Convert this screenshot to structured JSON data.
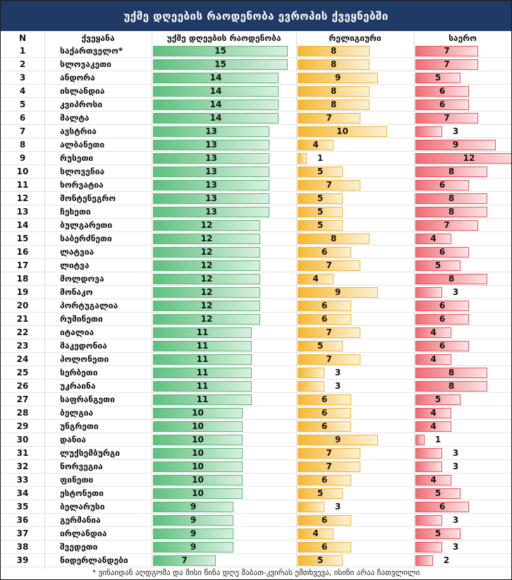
{
  "title": "უქმე დღეების რაოდენობა ევროპის ქვეყნებში",
  "footnote": "* ვინაიდან აღდგომა და მისი წინა დღე შაბათ-კვირას ემთხვევა, ისინი არაა ჩათვლილი",
  "colors": {
    "header_bg": "#1f3a64",
    "total": "#5ec07e",
    "religious": "#f5b731",
    "secular": "#f06c74"
  },
  "chart_data": {
    "type": "table",
    "columns": [
      "N",
      "ქვეყანა",
      "უქმე დღეების რაოდენობა",
      "რელიგიური",
      "საერო"
    ],
    "scale_max": 15,
    "rows": [
      {
        "n": "1",
        "country": "საქართველო*",
        "total": 15,
        "religious": 8,
        "secular": 7
      },
      {
        "n": "2",
        "country": "სლოვაკეთი",
        "total": 15,
        "religious": 8,
        "secular": 7
      },
      {
        "n": "3",
        "country": "ანდორა",
        "total": 14,
        "religious": 9,
        "secular": 5
      },
      {
        "n": "4",
        "country": "ისლანდია",
        "total": 14,
        "religious": 8,
        "secular": 6
      },
      {
        "n": "5",
        "country": "კვიპროსი",
        "total": 14,
        "religious": 8,
        "secular": 6
      },
      {
        "n": "6",
        "country": "მალტა",
        "total": 14,
        "religious": 7,
        "secular": 7
      },
      {
        "n": "7",
        "country": "ავსტრია",
        "total": 13,
        "religious": 10,
        "secular": 3
      },
      {
        "n": "8",
        "country": "ალბანეთი",
        "total": 13,
        "religious": 4,
        "secular": 9
      },
      {
        "n": "9",
        "country": "რუსეთი",
        "total": 13,
        "religious": 1,
        "secular": 12
      },
      {
        "n": "10",
        "country": "სლოვენია",
        "total": 13,
        "religious": 5,
        "secular": 8
      },
      {
        "n": "11",
        "country": "ხორვატია",
        "total": 13,
        "religious": 7,
        "secular": 6
      },
      {
        "n": "12",
        "country": "მონტენეგრო",
        "total": 13,
        "religious": 5,
        "secular": 8
      },
      {
        "n": "13",
        "country": "ჩეხეთი",
        "total": 13,
        "religious": 5,
        "secular": 8
      },
      {
        "n": "14",
        "country": "ბულგარეთი",
        "total": 12,
        "religious": 5,
        "secular": 7
      },
      {
        "n": "15",
        "country": "საბერძნეთი",
        "total": 12,
        "religious": 8,
        "secular": 4
      },
      {
        "n": "16",
        "country": "ლატვია",
        "total": 12,
        "religious": 6,
        "secular": 6
      },
      {
        "n": "17",
        "country": "ლიტვა",
        "total": 12,
        "religious": 7,
        "secular": 5
      },
      {
        "n": "18",
        "country": "მოლდოვა",
        "total": 12,
        "religious": 4,
        "secular": 8
      },
      {
        "n": "19",
        "country": "მონაკო",
        "total": 12,
        "religious": 9,
        "secular": 3
      },
      {
        "n": "20",
        "country": "პორტუგალია",
        "total": 12,
        "religious": 6,
        "secular": 6
      },
      {
        "n": "21",
        "country": "რუმინეთი",
        "total": 12,
        "religious": 6,
        "secular": 6
      },
      {
        "n": "22",
        "country": "იტალია",
        "total": 11,
        "religious": 7,
        "secular": 4
      },
      {
        "n": "23",
        "country": "მაკედონია",
        "total": 11,
        "religious": 5,
        "secular": 6
      },
      {
        "n": "24",
        "country": "პოლონეთი",
        "total": 11,
        "religious": 7,
        "secular": 4
      },
      {
        "n": "25",
        "country": "სერბეთი",
        "total": 11,
        "religious": 3,
        "secular": 8
      },
      {
        "n": "26",
        "country": "უკრაინა",
        "total": 11,
        "religious": 3,
        "secular": 8
      },
      {
        "n": "27",
        "country": "საფრანგეთი",
        "total": 11,
        "religious": 6,
        "secular": 5
      },
      {
        "n": "28",
        "country": "ბელგია",
        "total": 10,
        "religious": 6,
        "secular": 4
      },
      {
        "n": "29",
        "country": "უნგრეთი",
        "total": 10,
        "religious": 6,
        "secular": 4
      },
      {
        "n": "30",
        "country": "დანია",
        "total": 10,
        "religious": 9,
        "secular": 1
      },
      {
        "n": "31",
        "country": "ლუქსემბურგი",
        "total": 10,
        "religious": 7,
        "secular": 3
      },
      {
        "n": "32",
        "country": "ნორვეგია",
        "total": 10,
        "religious": 7,
        "secular": 3
      },
      {
        "n": "33",
        "country": "ფინეთი",
        "total": 10,
        "religious": 6,
        "secular": 4
      },
      {
        "n": "34",
        "country": "ესტონეთი",
        "total": 10,
        "religious": 5,
        "secular": 5
      },
      {
        "n": "35",
        "country": "ბელარუსი",
        "total": 9,
        "religious": 3,
        "secular": 6
      },
      {
        "n": "36",
        "country": "გერმანია",
        "total": 9,
        "religious": 6,
        "secular": 3
      },
      {
        "n": "37",
        "country": "ირლანდია",
        "total": 9,
        "religious": 4,
        "secular": 5
      },
      {
        "n": "38",
        "country": "შვედეთი",
        "total": 9,
        "religious": 6,
        "secular": 3
      },
      {
        "n": "39",
        "country": "ნიდერლანდები",
        "total": 7,
        "religious": 5,
        "secular": 2
      }
    ]
  }
}
